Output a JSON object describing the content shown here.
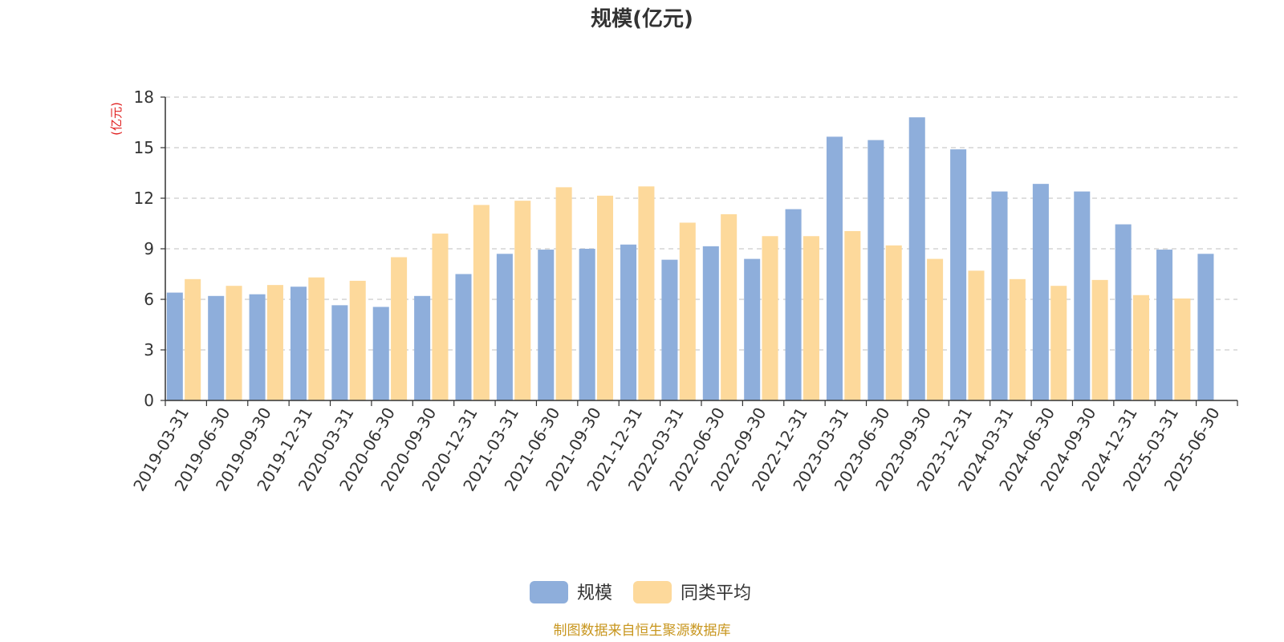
{
  "chart_data": {
    "type": "bar",
    "title": "规模(亿元)",
    "ylabel": "(亿元)",
    "ylim": [
      0,
      18
    ],
    "yticks": [
      0,
      3,
      6,
      9,
      12,
      15,
      18
    ],
    "grid": true,
    "legend_position": "bottom",
    "categories": [
      "2019-03-31",
      "2019-06-30",
      "2019-09-30",
      "2019-12-31",
      "2020-03-31",
      "2020-06-30",
      "2020-09-30",
      "2020-12-31",
      "2021-03-31",
      "2021-06-30",
      "2021-09-30",
      "2021-12-31",
      "2022-03-31",
      "2022-06-30",
      "2022-09-30",
      "2022-12-31",
      "2023-03-31",
      "2023-06-30",
      "2023-09-30",
      "2023-12-31",
      "2024-03-31",
      "2024-06-30",
      "2024-09-30",
      "2024-12-31",
      "2025-03-31",
      "2025-06-30"
    ],
    "series": [
      {
        "name": "规模",
        "color": "#8eaedb",
        "values": [
          6.4,
          6.2,
          6.3,
          6.75,
          5.65,
          5.55,
          6.2,
          7.5,
          8.7,
          8.95,
          9.0,
          9.25,
          8.35,
          9.15,
          8.4,
          11.35,
          15.65,
          15.45,
          16.8,
          14.9,
          12.4,
          12.85,
          12.4,
          10.45,
          8.95,
          8.7
        ]
      },
      {
        "name": "同类平均",
        "color": "#fdd99b",
        "values": [
          7.2,
          6.8,
          6.85,
          7.3,
          7.1,
          8.5,
          9.9,
          11.6,
          11.85,
          12.65,
          12.15,
          12.7,
          10.55,
          11.05,
          9.75,
          9.75,
          10.05,
          9.2,
          8.4,
          7.7,
          7.2,
          6.8,
          7.15,
          6.25,
          6.05,
          null
        ]
      }
    ]
  },
  "colors": {
    "title": "#333333",
    "unit_label": "#e02020",
    "source": "#c8961e",
    "grid": "#cccccc",
    "axis": "#333333"
  },
  "source_text": "制图数据来自恒生聚源数据库"
}
